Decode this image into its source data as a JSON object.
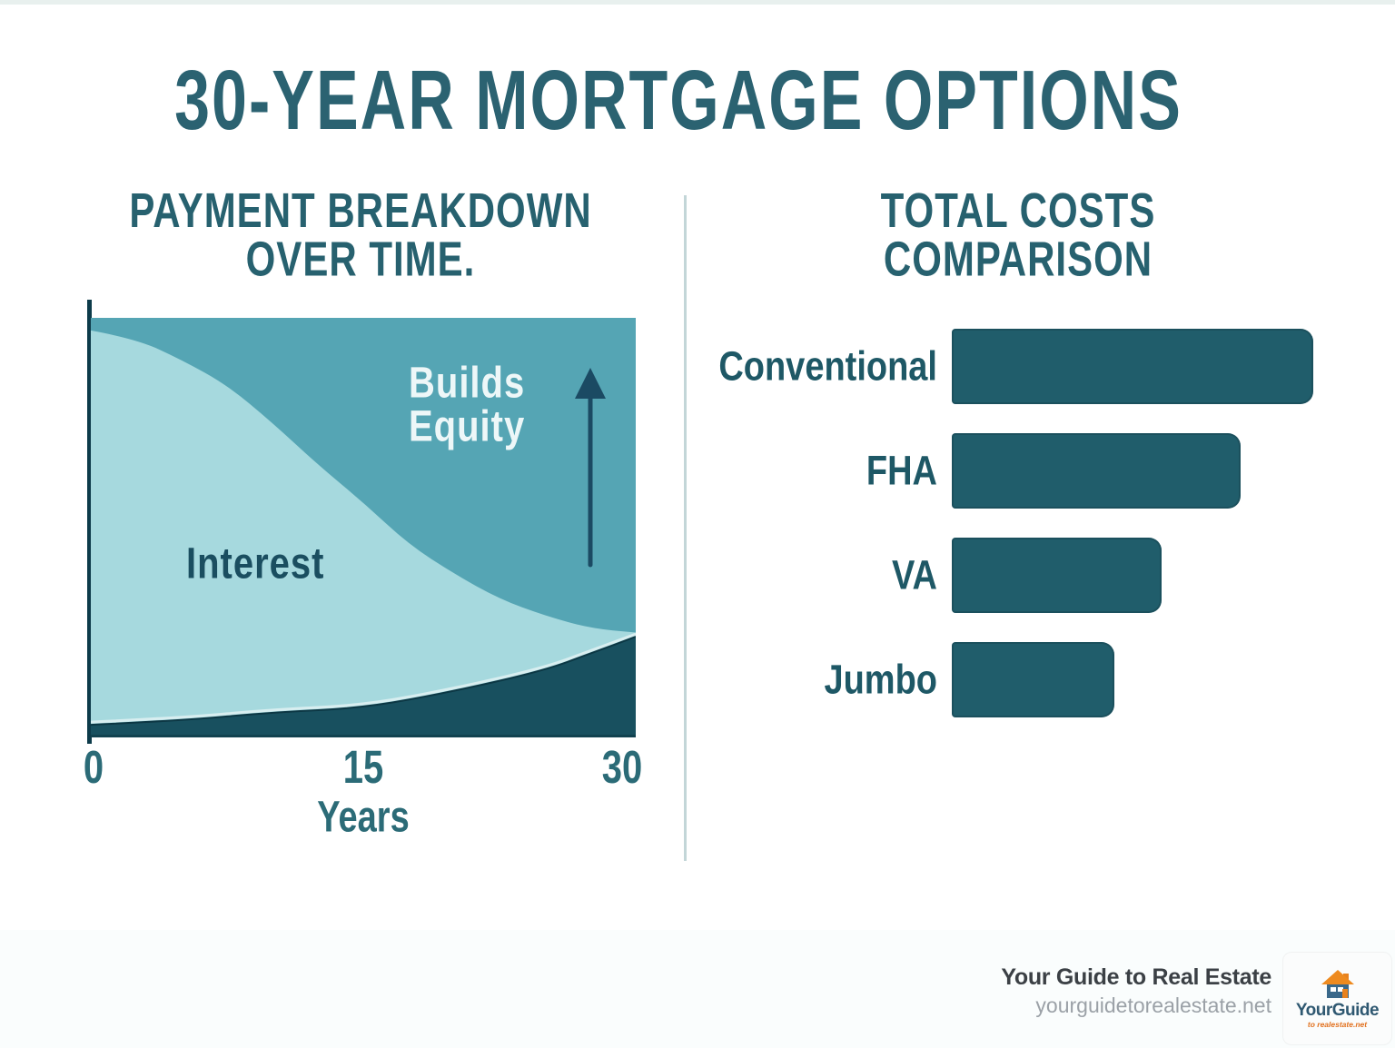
{
  "title": "30-YEAR MORTGAGE OPTIONS",
  "left_panel": {
    "heading_line1": "PAYMENT BREAKDOWN",
    "heading_line2": "OVER TIME.",
    "interest_label": "Interest",
    "equity_label_line1": "Builds",
    "equity_label_line2": "Equity",
    "x_axis_title": "Years"
  },
  "right_panel": {
    "heading_line1": "TOTAL COSTS",
    "heading_line2": "COMPARISON"
  },
  "footer": {
    "brand": "Your Guide to Real Estate",
    "website": "yourguidetorealestate.net",
    "logo_name_part1": "Your",
    "logo_name_part2": "Guide",
    "logo_tagline": "to realestate.net"
  },
  "chart_data": [
    {
      "type": "area",
      "title": "PAYMENT BREAKDOWN OVER TIME",
      "xlabel": "Years",
      "x_range": [
        0,
        30
      ],
      "x_ticks": [
        "0",
        "15",
        "30"
      ],
      "y_range": [
        0,
        1
      ],
      "grid": false,
      "annotations": [
        "Interest",
        "Builds Equity",
        "upward arrow at year 28"
      ],
      "series": [
        {
          "name": "Interest share (top boundary of light area, fraction of payment)",
          "x": [
            0,
            2.5,
            5,
            7.5,
            10,
            12.5,
            15,
            17.5,
            20,
            22.5,
            25,
            27.5,
            30
          ],
          "y": [
            0.97,
            0.95,
            0.9,
            0.84,
            0.75,
            0.65,
            0.56,
            0.46,
            0.39,
            0.33,
            0.29,
            0.26,
            0.25
          ]
        },
        {
          "name": "Equity / principal paid (top boundary of dark area, fraction)",
          "x": [
            0,
            5,
            10,
            15,
            20,
            25,
            27.5,
            30
          ],
          "y": [
            0.03,
            0.04,
            0.06,
            0.07,
            0.11,
            0.16,
            0.2,
            0.24
          ]
        }
      ]
    },
    {
      "type": "bar",
      "orientation": "horizontal",
      "title": "TOTAL COSTS COMPARISON",
      "categories": [
        "Conventional",
        "FHA",
        "VA",
        "Jumbo"
      ],
      "values": [
        100,
        80,
        58,
        45
      ],
      "unit": "relative total cost (% of longest bar)",
      "grid": false
    }
  ],
  "colors": {
    "title_text": "#2b6271",
    "heading_text": "#27616f",
    "chart_mid": "#55a5b4",
    "chart_light": "#a6d9de",
    "chart_dark": "#18505f",
    "chart_dark_edge": "#0c3744",
    "chart_pale_edge": "#d8eef0",
    "bar": "#205d6b",
    "bar_label": "#1e5866",
    "axis": "#0d3b4a",
    "arrow": "#1b4a63",
    "tick_label": "#2b6b77",
    "interest_label": "#1a4e60",
    "equity_label": "#edf7f8",
    "divider": "#c3d6d8",
    "footer_text": "#3b4045",
    "footer_domain": "#9ba1a7",
    "logo_orange": "#e8821e",
    "logo_slate": "#2f5871"
  }
}
